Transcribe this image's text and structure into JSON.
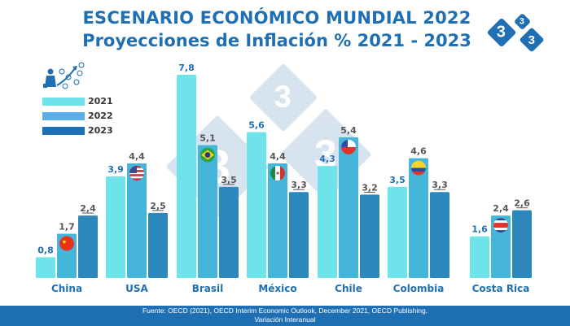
{
  "header": {
    "title_line1": "ESCENARIO ECONÓMICO MUNDIAL 2022",
    "title_line2": "Proyecciones de Inflación % 2021 - 2023",
    "logo_glyph": "3"
  },
  "legend_icon": "business-growth-icon",
  "footer": {
    "source": "Fuente: OECD (2021), OECD Interim Economic Outlook, December 2021, OECD Publishing.",
    "note": "Variación Interanual"
  },
  "colors": {
    "title": "#1f6fb4",
    "s2021": "#6ee4ea",
    "s2022": "#45b5d9",
    "s2023": "#2c88ba",
    "label_2021": "#1f6fb4",
    "label_other": "#555555",
    "footer_bg": "#1f6fb4"
  },
  "chart_data": {
    "type": "bar",
    "title": "ESCENARIO ECONÓMICO MUNDIAL 2022 — Proyecciones de Inflación % 2021 - 2023",
    "xlabel": "",
    "ylabel": "Inflación %",
    "ylim": [
      0,
      8
    ],
    "grid": false,
    "legend_position": "top-left",
    "categories": [
      "China",
      "USA",
      "Brasil",
      "México",
      "Chile",
      "Colombia",
      "Costa Rica"
    ],
    "flags": [
      "china-flag",
      "usa-flag",
      "brazil-flag",
      "mexico-flag",
      "chile-flag",
      "colombia-flag",
      "costa-rica-flag"
    ],
    "series": [
      {
        "name": "2021",
        "values": [
          0.8,
          3.9,
          7.8,
          5.6,
          4.3,
          3.5,
          1.6
        ],
        "labels": [
          "0,8",
          "3,9",
          "7,8",
          "5,6",
          "4,3",
          "3,5",
          "1,6"
        ]
      },
      {
        "name": "2022",
        "values": [
          1.7,
          4.4,
          5.1,
          4.4,
          5.4,
          4.6,
          2.4
        ],
        "labels": [
          "1,7",
          "4,4",
          "5,1",
          "4,4",
          "5,4",
          "4,6",
          "2,4"
        ]
      },
      {
        "name": "2023",
        "values": [
          2.4,
          2.5,
          3.5,
          3.3,
          3.2,
          3.3,
          2.6
        ],
        "labels": [
          "2,4",
          "2,5",
          "3,5",
          "3,3",
          "3,2",
          "3,3",
          "2,6"
        ]
      }
    ]
  }
}
